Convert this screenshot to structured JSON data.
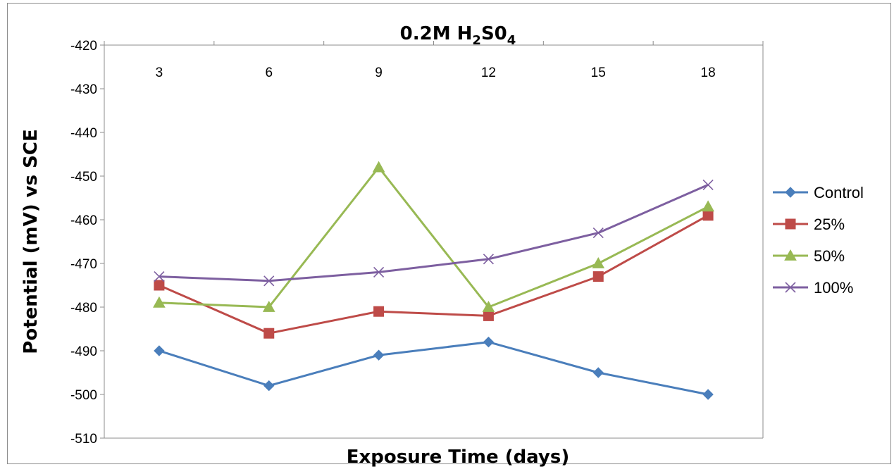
{
  "chart_data": {
    "type": "line",
    "title": "0.2M H2S04",
    "title_parts": {
      "pre": "0.2M H",
      "sub1": "2",
      "mid": "S0",
      "sub2": "4"
    },
    "xlabel": "Exposure Time (days)",
    "ylabel": "Potential (mV) vs SCE",
    "x": [
      3,
      6,
      9,
      12,
      15,
      18
    ],
    "x_tick_labels": [
      "3",
      "6",
      "9",
      "12",
      "15",
      "18"
    ],
    "x_axis_position": "top",
    "ylim": [
      -510,
      -420
    ],
    "y_ticks": [
      -420,
      -430,
      -440,
      -450,
      -460,
      -470,
      -480,
      -490,
      -500,
      -510
    ],
    "y_tick_labels": [
      "-420",
      "-430",
      "-440",
      "-450",
      "-460",
      "-470",
      "-480",
      "-490",
      "-500",
      "-510"
    ],
    "grid": false,
    "legend_position": "right",
    "series": [
      {
        "name": "Control",
        "color": "#4a7ebb",
        "marker": "diamond",
        "values": [
          -490,
          -498,
          -491,
          -488,
          -495,
          -500
        ]
      },
      {
        "name": "25%",
        "color": "#be4b48",
        "marker": "square",
        "values": [
          -475,
          -486,
          -481,
          -482,
          -473,
          -459
        ]
      },
      {
        "name": "50%",
        "color": "#98b954",
        "marker": "triangle",
        "values": [
          -479,
          -480,
          -448,
          -480,
          -470,
          -457
        ]
      },
      {
        "name": "100%",
        "color": "#7d5fa0",
        "marker": "x",
        "values": [
          -473,
          -474,
          -472,
          -469,
          -463,
          -452
        ]
      }
    ]
  }
}
